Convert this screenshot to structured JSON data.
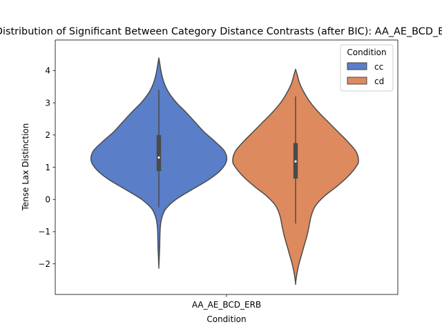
{
  "chart_data": {
    "type": "violin",
    "title": "Distribution of Significant Between Category Distance Contrasts (after BIC): AA_AE_BCD_ERB",
    "xlabel": "Condition",
    "ylabel": "Tense Lax Distinction",
    "categories": [
      "AA_AE_BCD_ERB"
    ],
    "ylim": [
      -2.95,
      4.95
    ],
    "yticks": [
      -2,
      -1,
      0,
      1,
      2,
      3,
      4
    ],
    "grid": false,
    "legend": {
      "title": "Condition",
      "placement": "top-right"
    },
    "series": [
      {
        "name": "cc",
        "color": "#5a7ec8",
        "range": [
          -2.1,
          4.4
        ],
        "whisker": [
          -0.25,
          3.4
        ],
        "q1": 0.88,
        "q3": 2.0,
        "median": 1.3,
        "density": [
          [
            -2.1,
            0.0
          ],
          [
            -1.8,
            0.6
          ],
          [
            -1.5,
            1.2
          ],
          [
            -1.2,
            1.5
          ],
          [
            -0.9,
            2.0
          ],
          [
            -0.6,
            4.0
          ],
          [
            -0.3,
            10.0
          ],
          [
            0.0,
            25.0
          ],
          [
            0.3,
            48.0
          ],
          [
            0.6,
            72.0
          ],
          [
            0.9,
            90.0
          ],
          [
            1.2,
            99.0
          ],
          [
            1.5,
            96.0
          ],
          [
            1.8,
            82.0
          ],
          [
            2.1,
            66.0
          ],
          [
            2.4,
            53.0
          ],
          [
            2.7,
            40.0
          ],
          [
            3.0,
            26.0
          ],
          [
            3.3,
            15.0
          ],
          [
            3.6,
            8.0
          ],
          [
            3.9,
            4.0
          ],
          [
            4.2,
            1.5
          ],
          [
            4.4,
            0.0
          ]
        ]
      },
      {
        "name": "cd",
        "color": "#dd8a5e",
        "range": [
          -2.6,
          4.03
        ],
        "whisker": [
          -0.75,
          3.2
        ],
        "q1": 0.65,
        "q3": 1.75,
        "median": 1.18,
        "density": [
          [
            -2.6,
            0.0
          ],
          [
            -2.3,
            2.0
          ],
          [
            -2.0,
            5.0
          ],
          [
            -1.7,
            9.0
          ],
          [
            -1.4,
            13.0
          ],
          [
            -1.1,
            17.0
          ],
          [
            -0.8,
            20.0
          ],
          [
            -0.5,
            23.0
          ],
          [
            -0.2,
            29.0
          ],
          [
            0.1,
            42.0
          ],
          [
            0.4,
            60.0
          ],
          [
            0.7,
            76.0
          ],
          [
            1.0,
            88.0
          ],
          [
            1.2,
            92.0
          ],
          [
            1.5,
            88.0
          ],
          [
            1.8,
            76.0
          ],
          [
            2.1,
            62.0
          ],
          [
            2.4,
            48.0
          ],
          [
            2.7,
            34.0
          ],
          [
            3.0,
            22.0
          ],
          [
            3.3,
            13.0
          ],
          [
            3.6,
            6.0
          ],
          [
            3.9,
            2.0
          ],
          [
            4.03,
            0.0
          ]
        ]
      }
    ]
  }
}
